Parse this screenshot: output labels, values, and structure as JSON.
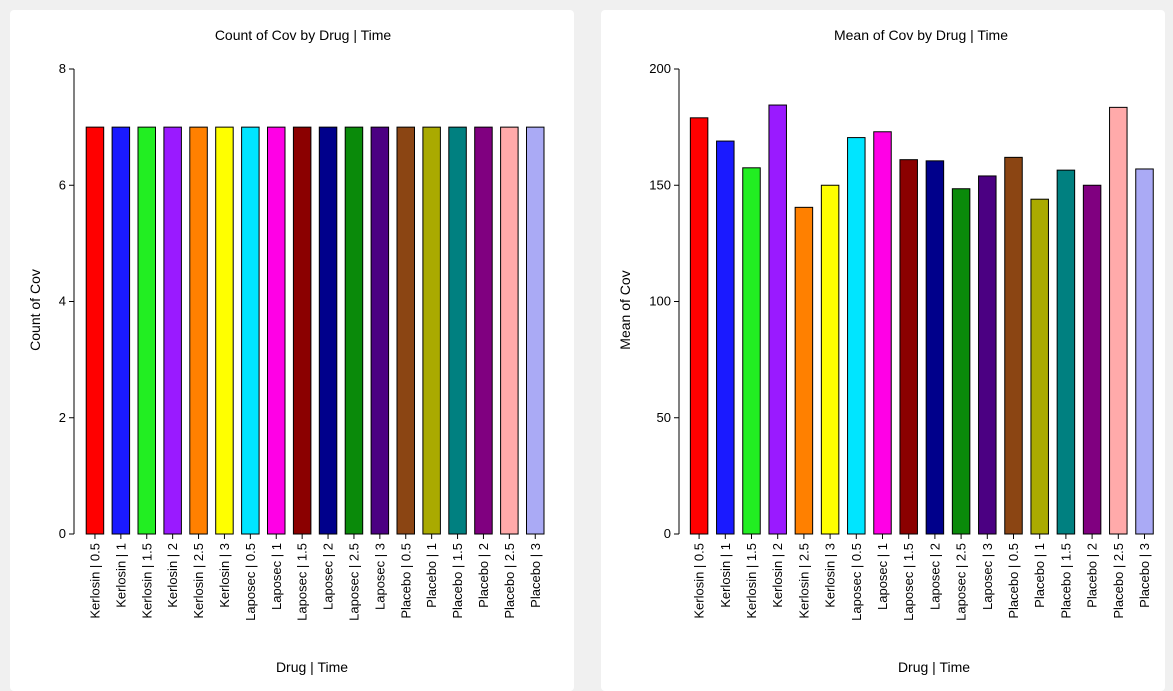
{
  "chart_data": [
    {
      "type": "bar",
      "title": "Count of Cov by Drug | Time",
      "xlabel": "Drug | Time",
      "ylabel": "Count of Cov",
      "ylim": [
        0,
        8
      ],
      "yticks": [
        0,
        2,
        4,
        6,
        8
      ],
      "categories": [
        "Kerlosin | 0.5",
        "Kerlosin | 1",
        "Kerlosin | 1.5",
        "Kerlosin | 2",
        "Kerlosin | 2.5",
        "Kerlosin | 3",
        "Laposec | 0.5",
        "Laposec | 1",
        "Laposec | 1.5",
        "Laposec | 2",
        "Laposec | 2.5",
        "Laposec | 3",
        "Placebo | 0.5",
        "Placebo | 1",
        "Placebo | 1.5",
        "Placebo | 2",
        "Placebo | 2.5",
        "Placebo | 3"
      ],
      "values": [
        7,
        7,
        7,
        7,
        7,
        7,
        7,
        7,
        7,
        7,
        7,
        7,
        7,
        7,
        7,
        7,
        7,
        7
      ],
      "colors": [
        "#ff0000",
        "#1a1aff",
        "#22ee22",
        "#9a1aff",
        "#ff8000",
        "#ffff00",
        "#00e5ff",
        "#ff00e6",
        "#8b0000",
        "#00008b",
        "#0a8a0a",
        "#4b0082",
        "#8b4513",
        "#aaaa00",
        "#008080",
        "#800080",
        "#ffaaaa",
        "#aaaaf5"
      ],
      "grid": false,
      "legend": "none"
    },
    {
      "type": "bar",
      "title": "Mean of Cov by Drug | Time",
      "xlabel": "Drug | Time",
      "ylabel": "Mean of Cov",
      "ylim": [
        0,
        200
      ],
      "yticks": [
        0,
        50,
        100,
        150,
        200
      ],
      "categories": [
        "Kerlosin | 0.5",
        "Kerlosin | 1",
        "Kerlosin | 1.5",
        "Kerlosin | 2",
        "Kerlosin | 2.5",
        "Kerlosin | 3",
        "Laposec | 0.5",
        "Laposec | 1",
        "Laposec | 1.5",
        "Laposec | 2",
        "Laposec | 2.5",
        "Laposec | 3",
        "Placebo | 0.5",
        "Placebo | 1",
        "Placebo | 1.5",
        "Placebo | 2",
        "Placebo | 2.5",
        "Placebo | 3"
      ],
      "values": [
        179,
        169,
        157.5,
        184.5,
        140.5,
        150,
        170.5,
        173,
        161,
        160.5,
        148.5,
        154,
        162,
        144,
        156.5,
        150,
        183.5,
        157
      ],
      "colors": [
        "#ff0000",
        "#1a1aff",
        "#22ee22",
        "#9a1aff",
        "#ff8000",
        "#ffff00",
        "#00e5ff",
        "#ff00e6",
        "#8b0000",
        "#00008b",
        "#0a8a0a",
        "#4b0082",
        "#8b4513",
        "#aaaa00",
        "#008080",
        "#800080",
        "#ffaaaa",
        "#aaaaf5"
      ],
      "grid": false,
      "legend": "none"
    }
  ]
}
